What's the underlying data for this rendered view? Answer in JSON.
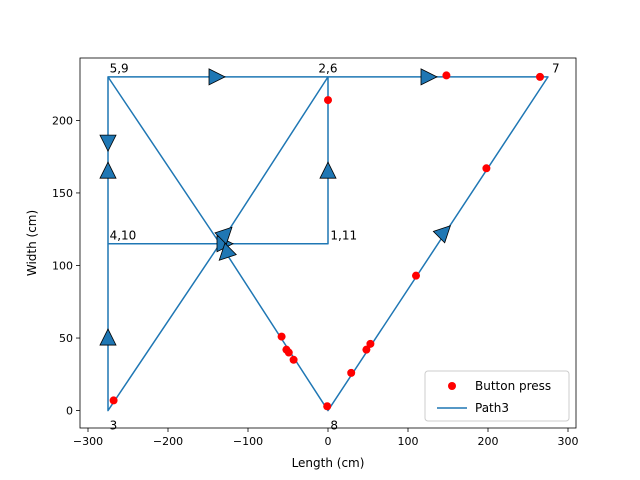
{
  "chart_data": {
    "type": "scatter",
    "xlabel": "Length (cm)",
    "ylabel": "Width (cm)",
    "xlim": [
      -310,
      310
    ],
    "ylim": [
      -12,
      243
    ],
    "xticks": [
      -300,
      -200,
      -100,
      0,
      100,
      200,
      300
    ],
    "yticks": [
      0,
      50,
      100,
      150,
      200
    ],
    "legend_position": "lower right",
    "legend": [
      "Button press",
      "Path3"
    ],
    "colors": {
      "path": "#1f77b4",
      "points": "#ff0000"
    },
    "path": {
      "name": "Path3",
      "points": [
        [
          -275,
          0
        ],
        [
          -275,
          115
        ],
        [
          0,
          115
        ],
        [
          0,
          230
        ],
        [
          -275,
          230
        ],
        [
          -275,
          115
        ],
        [
          -275,
          0
        ],
        [
          -135,
          115
        ],
        [
          0,
          230
        ],
        [
          275,
          230
        ],
        [
          0,
          0
        ],
        [
          -135,
          115
        ],
        [
          -275,
          230
        ],
        [
          -275,
          115
        ],
        [
          0,
          115
        ],
        [
          0,
          230
        ]
      ],
      "arrows": [
        {
          "x": -275,
          "y": 50,
          "dir": "up"
        },
        {
          "x": -275,
          "y": 165,
          "dir": "up"
        },
        {
          "x": -275,
          "y": 185,
          "dir": "down"
        },
        {
          "x": -140,
          "y": 230,
          "dir": "right"
        },
        {
          "x": 125,
          "y": 230,
          "dir": "right"
        },
        {
          "x": 0,
          "y": 165,
          "dir": "up"
        },
        {
          "x": -130,
          "y": 115,
          "dir": "right"
        },
        {
          "x": -128,
          "y": 122,
          "dir": "upright"
        },
        {
          "x": -128,
          "y": 108,
          "dir": "downleft"
        },
        {
          "x": 145,
          "y": 123,
          "dir": "upright"
        }
      ]
    },
    "button_press": {
      "name": "Button press",
      "x": [
        -268,
        -1,
        -58,
        -52,
        -49,
        -43,
        29,
        48,
        53,
        110,
        198,
        265,
        148,
        0
      ],
      "y": [
        7,
        3,
        51,
        42,
        40,
        35,
        26,
        42,
        46,
        93,
        167,
        230,
        231,
        214
      ]
    },
    "annotations": [
      {
        "text": "5,9",
        "x": -273,
        "y": 233
      },
      {
        "text": "2,6",
        "x": -12,
        "y": 233
      },
      {
        "text": "7",
        "x": 280,
        "y": 233
      },
      {
        "text": "4,10",
        "x": -273,
        "y": 118
      },
      {
        "text": "1,11",
        "x": 3,
        "y": 118
      },
      {
        "text": "3",
        "x": -273,
        "y": -13
      },
      {
        "text": "8",
        "x": 3,
        "y": -13
      }
    ]
  }
}
